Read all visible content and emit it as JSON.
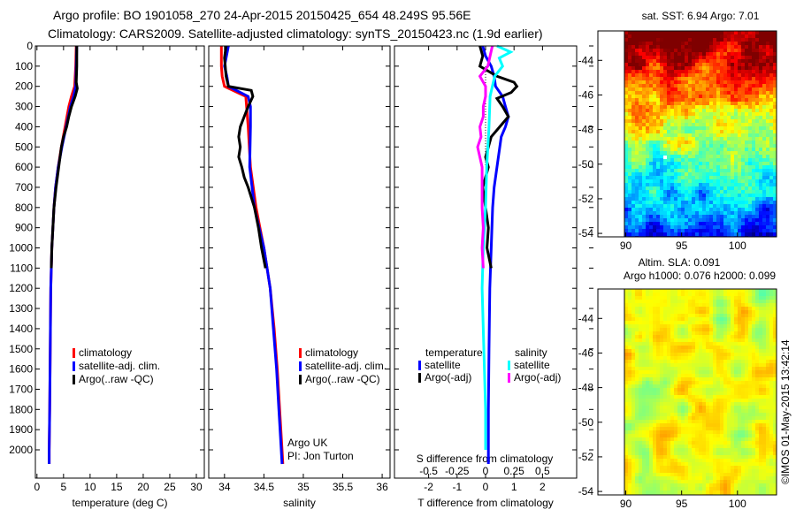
{
  "title_line1": "Argo profile: BO 1901058_270 24-Apr-2015 20150425_654 48.249S 95.56E",
  "title_line2": "Climatology: CARS2009. Satellite-adjusted climatology: synTS_20150423.nc (1.9d earlier)",
  "chart_data": [
    {
      "type": "line",
      "name": "temperature-profile",
      "xlabel": "temperature (deg C)",
      "ylabel": "depth",
      "xlim": [
        -0.3,
        31.5
      ],
      "ylim": [
        2140,
        0
      ],
      "xticks": [
        0,
        5,
        10,
        15,
        20,
        25,
        30
      ],
      "yticks": [
        0,
        100,
        200,
        300,
        400,
        500,
        600,
        700,
        800,
        900,
        1000,
        1100,
        1200,
        1300,
        1400,
        1500,
        1600,
        1700,
        1800,
        1900,
        2000
      ],
      "legend": [
        "climatology",
        "satellite-adj. clim.",
        "Argo(..raw -QC)"
      ],
      "legend_placement": "lower-center",
      "series": [
        {
          "name": "climatology",
          "color": "#ff0000",
          "depth": [
            0,
            100,
            200,
            250,
            300,
            400,
            500,
            600,
            700,
            800,
            1000,
            1200,
            1500,
            1800,
            2000,
            2070
          ],
          "values": [
            7.4,
            7.3,
            7.1,
            6.5,
            6.0,
            5.3,
            4.6,
            4.0,
            3.5,
            3.2,
            2.8,
            2.6,
            2.5,
            2.4,
            2.3,
            2.3
          ]
        },
        {
          "name": "satellite-adj. clim.",
          "color": "#0000ff",
          "depth": [
            0,
            100,
            200,
            250,
            300,
            400,
            500,
            600,
            700,
            800,
            1000,
            1200,
            1500,
            1800,
            2000,
            2070
          ],
          "values": [
            7.5,
            7.4,
            7.3,
            6.9,
            6.3,
            5.5,
            4.7,
            4.0,
            3.5,
            3.2,
            2.8,
            2.6,
            2.5,
            2.4,
            2.3,
            2.3
          ]
        },
        {
          "name": "Argo(..raw -QC)",
          "color": "#000000",
          "depth": [
            0,
            100,
            180,
            210,
            250,
            300,
            350,
            400,
            450,
            500,
            600,
            700,
            800,
            900,
            1000,
            1100
          ],
          "values": [
            7.5,
            7.5,
            7.4,
            7.6,
            7.2,
            6.5,
            6.0,
            5.6,
            5.0,
            4.6,
            4.1,
            3.6,
            3.2,
            3.0,
            2.8,
            2.7
          ]
        }
      ]
    },
    {
      "type": "line",
      "name": "salinity-profile",
      "xlabel": "salinity",
      "xlim": [
        33.8,
        36.1
      ],
      "ylim": [
        2140,
        0
      ],
      "xticks": [
        34,
        34.5,
        35,
        35.5,
        36
      ],
      "legend": [
        "climatology",
        "satellite-adj. clim.",
        "Argo(..raw -QC)"
      ],
      "legend_placement": "lower-right",
      "annotation": [
        "Argo UK",
        "PI: Jon Turton"
      ],
      "series": [
        {
          "name": "climatology",
          "color": "#ff0000",
          "depth": [
            0,
            100,
            150,
            200,
            250,
            300,
            400,
            600,
            800,
            900,
            1000,
            1200,
            1400,
            1600,
            1800,
            2000,
            2070
          ],
          "values": [
            33.96,
            33.96,
            33.97,
            34.0,
            34.27,
            34.28,
            34.3,
            34.33,
            34.4,
            34.45,
            34.5,
            34.58,
            34.63,
            34.67,
            34.7,
            34.73,
            34.74
          ]
        },
        {
          "name": "satellite-adj. clim.",
          "color": "#0000ff",
          "depth": [
            0,
            60,
            100,
            150,
            200,
            250,
            300,
            400,
            600,
            800,
            900,
            1000,
            1200,
            1400,
            1600,
            1800,
            2000,
            2070
          ],
          "values": [
            34.05,
            34.02,
            34.0,
            34.03,
            34.05,
            34.3,
            34.33,
            34.33,
            34.32,
            34.38,
            34.44,
            34.5,
            34.58,
            34.62,
            34.66,
            34.69,
            34.72,
            34.73
          ]
        },
        {
          "name": "Argo(..raw -QC)",
          "color": "#000000",
          "depth": [
            0,
            60,
            100,
            150,
            200,
            220,
            250,
            300,
            350,
            400,
            450,
            500,
            550,
            600,
            650,
            700,
            800,
            900,
            1000,
            1100
          ],
          "values": [
            34.02,
            34.0,
            34.01,
            34.02,
            34.05,
            34.34,
            34.36,
            34.3,
            34.25,
            34.2,
            34.18,
            34.2,
            34.18,
            34.22,
            34.25,
            34.3,
            34.38,
            34.43,
            34.47,
            34.52
          ]
        }
      ]
    },
    {
      "type": "line",
      "name": "difference-profile",
      "xlabel": "T difference from climatology",
      "x2label": "S difference from climatology",
      "xlim": [
        -3.2,
        3.2
      ],
      "x2lim": [
        -0.8,
        0.8
      ],
      "ylim": [
        2140,
        0
      ],
      "xticks": [
        -2,
        -1,
        0,
        1,
        2
      ],
      "x2ticks": [
        -0.5,
        -0.25,
        0,
        0.25,
        0.5
      ],
      "legend_headers": [
        "temperature",
        "salinity"
      ],
      "legend": [
        "satellite",
        "Argo(-adj)",
        "satellite",
        "Argo(-adj)"
      ],
      "legend_placement": "lower-center",
      "series": [
        {
          "name": "T satellite",
          "color": "#0000ff",
          "axis": "T",
          "depth": [
            0,
            50,
            100,
            150,
            200,
            250,
            300,
            350,
            400,
            450,
            500,
            600,
            700,
            800,
            1000,
            1200,
            1500,
            1800,
            2000,
            2070
          ],
          "values": [
            -0.1,
            0.0,
            0.2,
            0.3,
            0.35,
            0.6,
            0.7,
            0.8,
            0.7,
            0.55,
            0.5,
            0.4,
            0.3,
            0.25,
            0.2,
            0.15,
            0.12,
            0.1,
            0.1,
            0.1
          ]
        },
        {
          "name": "T Argo(-adj)",
          "color": "#000000",
          "axis": "T",
          "depth": [
            0,
            50,
            100,
            150,
            180,
            200,
            230,
            260,
            300,
            350,
            400,
            450,
            500,
            550,
            600,
            700,
            800,
            900,
            1000,
            1100
          ],
          "values": [
            -0.2,
            -0.1,
            -0.2,
            0.4,
            1.0,
            1.1,
            0.9,
            0.4,
            0.6,
            0.8,
            0.5,
            0.2,
            0.1,
            0.0,
            0.1,
            -0.1,
            0.0,
            0.1,
            0.05,
            0.2
          ]
        },
        {
          "name": "S satellite",
          "color": "#00ffff",
          "axis": "S",
          "depth": [
            0,
            30,
            60,
            100,
            150,
            200,
            250,
            400,
            600,
            800,
            1000,
            1200,
            1400,
            1600,
            1800,
            2000
          ],
          "values": [
            0.1,
            0.22,
            0.12,
            0.15,
            0.08,
            0.06,
            0.04,
            0.03,
            0.01,
            0.0,
            -0.02,
            -0.03,
            -0.02,
            -0.01,
            0.0,
            0.0
          ]
        },
        {
          "name": "S Argo(-adj)",
          "color": "#ff00ff",
          "axis": "S",
          "depth": [
            0,
            50,
            100,
            150,
            200,
            250,
            300,
            350,
            400,
            450,
            500,
            600,
            700,
            800,
            900,
            1000,
            1100
          ],
          "values": [
            0.06,
            0.04,
            0.02,
            -0.05,
            0.0,
            0.0,
            -0.02,
            -0.02,
            -0.05,
            -0.04,
            -0.07,
            -0.03,
            -0.03,
            -0.03,
            -0.02,
            -0.03,
            -0.02
          ]
        }
      ]
    },
    {
      "type": "heatmap",
      "name": "sst-map",
      "title": "sat. SST: 6.94  Argo: 7.01",
      "xlim": [
        89.8,
        103.5
      ],
      "ylim": [
        -54.2,
        -42.3
      ],
      "xticks": [
        90,
        95,
        100
      ],
      "yticks": [
        -44,
        -46,
        -48,
        -50,
        -52,
        -54
      ],
      "colormap": "jet"
    },
    {
      "type": "heatmap",
      "name": "sla-map",
      "title_lines": [
        "Altim. SLA: 0.091",
        "Argo h1000: 0.076 h2000: 0.099"
      ],
      "xlim": [
        89.8,
        103.5
      ],
      "ylim": [
        -54.2,
        -42.3
      ],
      "xticks": [
        90,
        95,
        100
      ],
      "yticks": [
        -44,
        -46,
        -48,
        -50,
        -52,
        -54
      ],
      "colormap": "green-yellow"
    }
  ],
  "footer_stamp": "©IMOS 01-May-2015 13:42:14"
}
